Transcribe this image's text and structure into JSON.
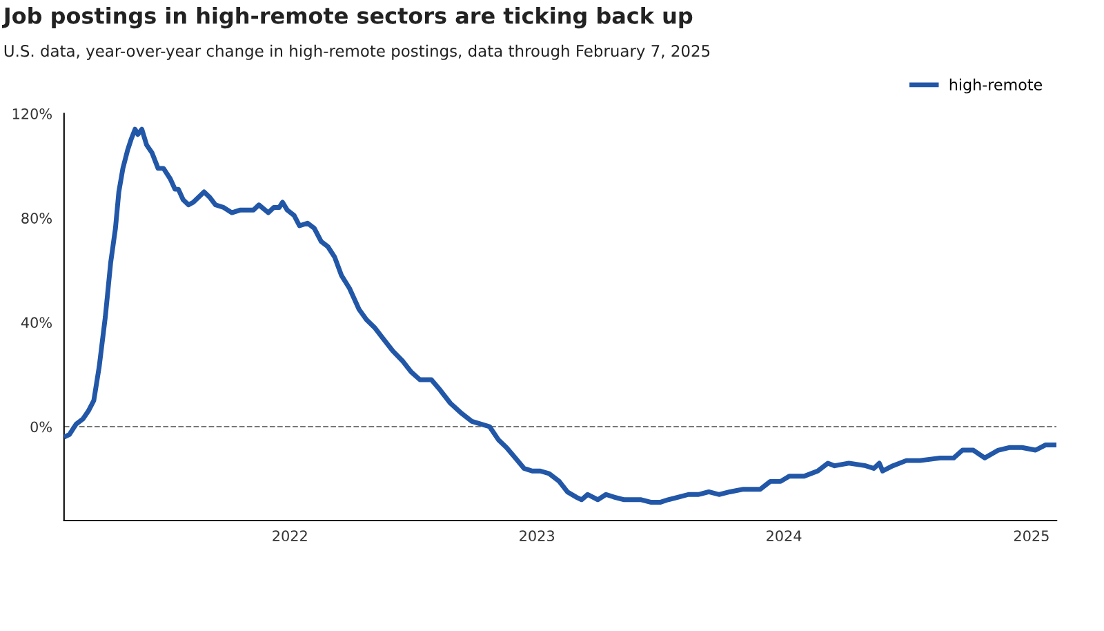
{
  "chart_data": {
    "type": "line",
    "title": "Job postings in high-remote sectors are ticking back up",
    "subtitle": "U.S. data, year-over-year change in high-remote postings, data through February 7, 2025",
    "x": [
      "2021-02-01",
      "2021-02-09",
      "2021-02-19",
      "2021-03-01",
      "2021-03-09",
      "2021-03-17",
      "2021-03-25",
      "2021-04-03",
      "2021-04-11",
      "2021-04-18",
      "2021-04-23",
      "2021-04-29",
      "2021-05-06",
      "2021-05-11",
      "2021-05-17",
      "2021-05-21",
      "2021-05-27",
      "2021-06-03",
      "2021-06-11",
      "2021-06-20",
      "2021-06-28",
      "2021-07-08",
      "2021-07-15",
      "2021-07-20",
      "2021-07-27",
      "2021-08-04",
      "2021-08-11",
      "2021-08-19",
      "2021-08-27",
      "2021-09-04",
      "2021-09-13",
      "2021-09-25",
      "2021-10-07",
      "2021-10-19",
      "2021-11-08",
      "2021-11-16",
      "2021-11-30",
      "2021-12-08",
      "2021-12-16",
      "2021-12-21",
      "2021-12-28",
      "2022-01-07",
      "2022-01-15",
      "2022-01-27",
      "2022-02-06",
      "2022-02-16",
      "2022-02-26",
      "2022-03-08",
      "2022-03-18",
      "2022-03-30",
      "2022-04-13",
      "2022-04-24",
      "2022-05-06",
      "2022-05-18",
      "2022-06-02",
      "2022-06-17",
      "2022-06-29",
      "2022-07-12",
      "2022-07-29",
      "2022-08-11",
      "2022-08-26",
      "2022-09-12",
      "2022-09-27",
      "2022-10-23",
      "2022-11-05",
      "2022-11-17",
      "2022-11-30",
      "2022-12-13",
      "2022-12-25",
      "2023-01-06",
      "2023-01-19",
      "2023-02-03",
      "2023-02-15",
      "2023-02-28",
      "2023-03-08",
      "2023-03-17",
      "2023-04-01",
      "2023-04-13",
      "2023-04-25",
      "2023-05-10",
      "2023-05-20",
      "2023-06-04",
      "2023-06-19",
      "2023-07-02",
      "2023-07-14",
      "2023-07-29",
      "2023-08-13",
      "2023-08-28",
      "2023-09-12",
      "2023-09-27",
      "2023-10-13",
      "2023-11-02",
      "2023-11-27",
      "2023-12-12",
      "2023-12-27",
      "2024-01-09",
      "2024-01-31",
      "2024-02-20",
      "2024-03-06",
      "2024-03-16",
      "2024-04-06",
      "2024-05-01",
      "2024-05-13",
      "2024-05-21",
      "2024-05-26",
      "2024-06-10",
      "2024-06-30",
      "2024-07-20",
      "2024-08-19",
      "2024-09-08",
      "2024-09-21",
      "2024-10-07",
      "2024-10-24",
      "2024-11-13",
      "2024-11-30",
      "2024-12-18",
      "2025-01-07",
      "2025-01-22",
      "2025-02-07"
    ],
    "series": [
      {
        "name": "high-remote",
        "color": "#2257a8",
        "values": [
          -4,
          -3,
          1,
          3,
          6,
          10,
          23,
          42,
          63,
          76,
          90,
          99,
          106,
          110,
          114,
          112,
          114,
          108,
          105,
          99,
          99,
          95,
          91,
          91,
          87,
          85,
          86,
          88,
          90,
          88,
          85,
          84,
          82,
          83,
          83,
          85,
          82,
          84,
          84,
          86,
          83,
          81,
          77,
          78,
          76,
          71,
          69,
          65,
          58,
          53,
          45,
          41,
          38,
          34,
          29,
          25,
          21,
          18,
          18,
          14,
          9,
          5,
          2,
          0,
          -5,
          -8,
          -12,
          -16,
          -17,
          -17,
          -18,
          -21,
          -25,
          -27,
          -28,
          -26,
          -28,
          -26,
          -27,
          -28,
          -28,
          -28,
          -29,
          -29,
          -28,
          -27,
          -26,
          -26,
          -25,
          -26,
          -25,
          -24,
          -24,
          -21,
          -21,
          -19,
          -19,
          -17,
          -14,
          -15,
          -14,
          -15,
          -16,
          -14,
          -17,
          -15,
          -13,
          -13,
          -12,
          -12,
          -9,
          -9,
          -12,
          -9,
          -8,
          -8,
          -9,
          -7,
          -7
        ]
      }
    ],
    "xlim": [
      "2021-02-01",
      "2025-02-07"
    ],
    "xticks": [
      {
        "value": "2022-01-01",
        "label": "2022"
      },
      {
        "value": "2023-01-01",
        "label": "2023"
      },
      {
        "value": "2024-01-01",
        "label": "2024"
      },
      {
        "value": "2025-01-01",
        "label": "2025"
      }
    ],
    "ylim": [
      -36,
      120
    ],
    "yticks": [
      {
        "value": 0,
        "label": "0%"
      },
      {
        "value": 40,
        "label": "40%"
      },
      {
        "value": 80,
        "label": "80%"
      },
      {
        "value": 120,
        "label": "120%"
      }
    ],
    "ref_lines": [
      {
        "axis": "y",
        "value": 0,
        "color": "#777777",
        "line_style": "dashed"
      }
    ],
    "grid": false,
    "legend": "top right",
    "line_style": "solid",
    "marker": "none"
  }
}
